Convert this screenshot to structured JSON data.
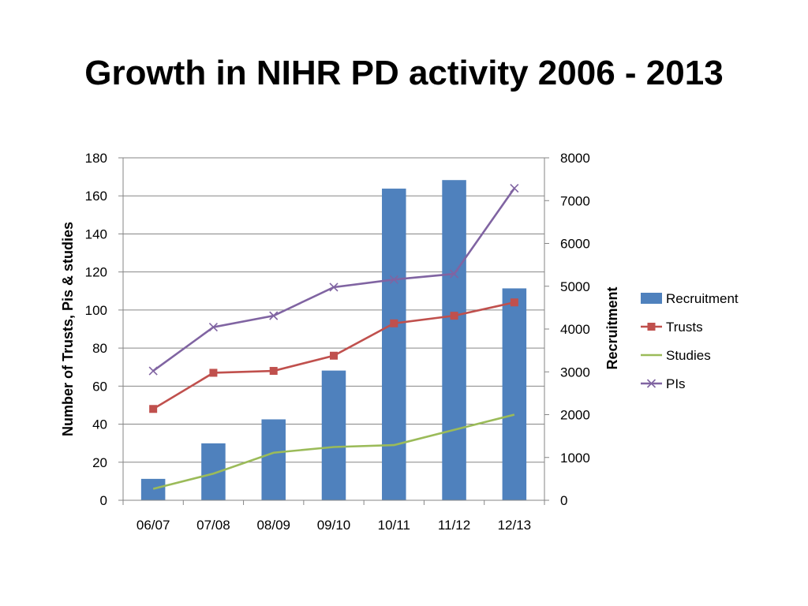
{
  "slide": {
    "title": "Growth in NIHR PD activity 2006 - 2013"
  },
  "chart_data": {
    "type": "bar",
    "title": "",
    "categories": [
      "06/07",
      "07/08",
      "08/09",
      "09/10",
      "10/11",
      "11/12",
      "12/13"
    ],
    "ylabel_left": "Number of Trusts, Pis & studies",
    "ylabel_right": "Recruitment",
    "ylim_left": [
      0,
      180
    ],
    "ylim_right": [
      0,
      8000
    ],
    "yticks_left": [
      0,
      20,
      40,
      60,
      80,
      100,
      120,
      140,
      160,
      180
    ],
    "yticks_right": [
      0,
      1000,
      2000,
      3000,
      4000,
      5000,
      6000,
      7000,
      8000
    ],
    "grid": true,
    "legend_position": "right",
    "series": [
      {
        "name": "Recruitment",
        "type": "bar",
        "axis": "right",
        "color": "#4F81BD",
        "marker": "square",
        "values": [
          500,
          1330,
          1890,
          3030,
          7280,
          7480,
          4950
        ]
      },
      {
        "name": "Trusts",
        "type": "line",
        "axis": "left",
        "color": "#C0504D",
        "marker": "square",
        "values": [
          48,
          67,
          68,
          76,
          93,
          97,
          104
        ]
      },
      {
        "name": "Studies",
        "type": "line",
        "axis": "left",
        "color": "#9BBB59",
        "marker": "none",
        "values": [
          6,
          14,
          25,
          28,
          29,
          37,
          45
        ]
      },
      {
        "name": "PIs",
        "type": "line",
        "axis": "left",
        "color": "#8064A2",
        "marker": "x",
        "values": [
          68,
          91,
          97,
          112,
          116,
          119,
          164
        ]
      }
    ]
  }
}
